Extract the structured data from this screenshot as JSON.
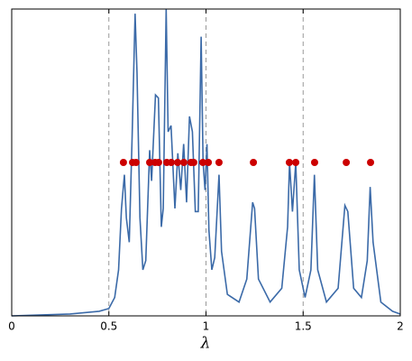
{
  "chart_data": {
    "type": "line",
    "xlabel": "λ",
    "xlim": [
      0,
      2
    ],
    "xticks": [
      0,
      0.5,
      1,
      1.5,
      2
    ],
    "ylim": [
      0,
      1
    ],
    "vlines": [
      0.5,
      1,
      1.5
    ],
    "series": [
      {
        "type": "line",
        "color": "#3b6aa8",
        "x": [
          0,
          0.3,
          0.45,
          0.5,
          0.53,
          0.55,
          0.565,
          0.58,
          0.59,
          0.605,
          0.62,
          0.635,
          0.645,
          0.66,
          0.675,
          0.69,
          0.71,
          0.72,
          0.74,
          0.755,
          0.77,
          0.78,
          0.795,
          0.805,
          0.82,
          0.84,
          0.855,
          0.87,
          0.885,
          0.9,
          0.915,
          0.93,
          0.945,
          0.96,
          0.975,
          0.985,
          0.995,
          1.005,
          1.015,
          1.03,
          1.045,
          1.067,
          1.08,
          1.11,
          1.17,
          1.21,
          1.24,
          1.25,
          1.27,
          1.33,
          1.39,
          1.42,
          1.43,
          1.445,
          1.462,
          1.48,
          1.51,
          1.54,
          1.558,
          1.575,
          1.62,
          1.68,
          1.715,
          1.73,
          1.76,
          1.8,
          1.83,
          1.845,
          1.86,
          1.9,
          1.96,
          2
        ],
        "values": [
          0,
          0.006,
          0.015,
          0.024,
          0.06,
          0.15,
          0.35,
          0.46,
          0.32,
          0.24,
          0.59,
          0.985,
          0.79,
          0.32,
          0.15,
          0.18,
          0.54,
          0.44,
          0.72,
          0.71,
          0.29,
          0.35,
          1.0,
          0.6,
          0.62,
          0.35,
          0.53,
          0.41,
          0.56,
          0.37,
          0.65,
          0.6,
          0.34,
          0.34,
          0.91,
          0.5,
          0.41,
          0.56,
          0.28,
          0.15,
          0.19,
          0.46,
          0.21,
          0.07,
          0.045,
          0.12,
          0.37,
          0.35,
          0.12,
          0.045,
          0.09,
          0.29,
          0.5,
          0.34,
          0.5,
          0.15,
          0.06,
          0.15,
          0.46,
          0.15,
          0.045,
          0.09,
          0.36,
          0.34,
          0.09,
          0.06,
          0.18,
          0.42,
          0.24,
          0.045,
          0.015,
          0.006
        ]
      },
      {
        "type": "scatter",
        "color": "#cc0000",
        "x": [
          0.575,
          0.622,
          0.64,
          0.71,
          0.738,
          0.756,
          0.798,
          0.821,
          0.854,
          0.886,
          0.923,
          0.937,
          0.984,
          1.012,
          1.067,
          1.244,
          1.429,
          1.462,
          1.559,
          1.722,
          1.847
        ],
        "values": [
          0.5,
          0.5,
          0.5,
          0.5,
          0.5,
          0.5,
          0.5,
          0.5,
          0.5,
          0.5,
          0.5,
          0.5,
          0.5,
          0.5,
          0.5,
          0.5,
          0.5,
          0.5,
          0.5,
          0.5,
          0.5
        ]
      }
    ]
  }
}
